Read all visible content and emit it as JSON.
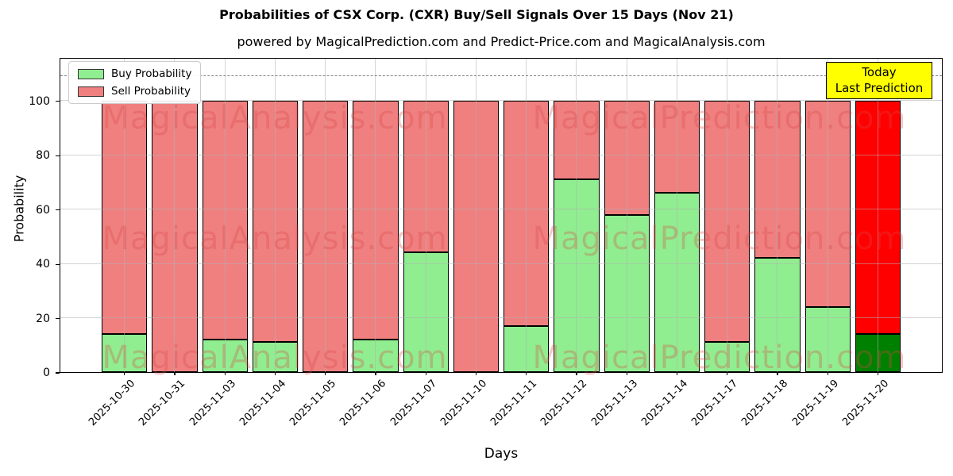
{
  "title": "Probabilities of CSX Corp. (CXR) Buy/Sell Signals Over 15 Days (Nov 21)",
  "subtitle": "powered by MagicalPrediction.com and Predict-Price.com and MagicalAnalysis.com",
  "legend": {
    "buy_label": "Buy Probability",
    "sell_label": "Sell Probability"
  },
  "annotation": {
    "line1": "Today",
    "line2": "Last Prediction"
  },
  "watermarks": [
    "MagicalAnalysis.com",
    "MagicalPrediction.com"
  ],
  "axes": {
    "xlabel": "Days",
    "ylabel": "Probability",
    "yticks": [
      0,
      20,
      40,
      60,
      80,
      100
    ]
  },
  "colors": {
    "buy_green": "#90EE90",
    "sell_red": "#F08080",
    "last_buy_green": "#008000",
    "last_sell_red": "#FF0000",
    "grid": "rgba(176,176,176,0.55)",
    "threshold_gray": "#808080",
    "annotation_yellow": "#ffff00"
  },
  "chart_data": {
    "type": "bar",
    "stacked": true,
    "title": "Probabilities of CSX Corp. (CXR) Buy/Sell Signals Over 15 Days (Nov 21)",
    "xlabel": "Days",
    "ylabel": "Probability",
    "ylim": [
      0,
      116
    ],
    "grid": true,
    "legend_position": "upper left",
    "threshold_line": {
      "y": 110,
      "style": "dashed",
      "color": "#808080"
    },
    "categories": [
      "2025-10-30",
      "2025-10-31",
      "2025-11-03",
      "2025-11-04",
      "2025-11-05",
      "2025-11-06",
      "2025-11-07",
      "2025-11-10",
      "2025-11-11",
      "2025-11-12",
      "2025-11-13",
      "2025-11-14",
      "2025-11-17",
      "2025-11-18",
      "2025-11-19",
      "2025-11-20"
    ],
    "series": [
      {
        "name": "Buy Probability",
        "color": "#90EE90",
        "values": [
          14,
          0,
          12,
          11,
          0,
          12,
          44,
          0,
          17,
          71,
          58,
          66,
          11,
          42,
          24,
          14
        ]
      },
      {
        "name": "Sell Probability",
        "color": "#F08080",
        "values": [
          86,
          100,
          88,
          89,
          100,
          88,
          56,
          100,
          83,
          29,
          42,
          34,
          89,
          58,
          76,
          86
        ]
      }
    ],
    "last_bar_highlight": {
      "buy_color": "#008000",
      "sell_color": "#FF0000",
      "label": "Today / Last Prediction"
    }
  }
}
